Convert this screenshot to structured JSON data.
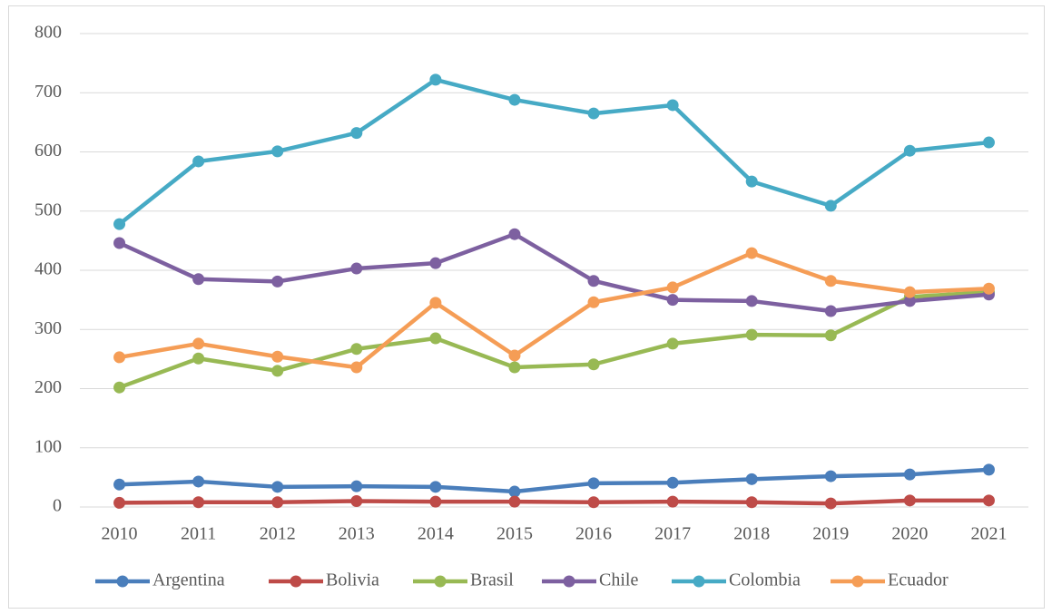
{
  "chart_data": {
    "type": "line",
    "categories": [
      "2010",
      "2011",
      "2012",
      "2013",
      "2014",
      "2015",
      "2016",
      "2017",
      "2018",
      "2019",
      "2020",
      "2021"
    ],
    "ylim": [
      0,
      800
    ],
    "yticks": [
      0,
      100,
      200,
      300,
      400,
      500,
      600,
      700,
      800
    ],
    "grid": true,
    "legend": "bottom",
    "series": [
      {
        "name": "Argentina",
        "color": "#4a7ebb",
        "values": [
          38,
          43,
          34,
          35,
          34,
          26,
          40,
          41,
          47,
          52,
          55,
          63
        ]
      },
      {
        "name": "Bolivia",
        "color": "#be4b48",
        "values": [
          7,
          8,
          8,
          10,
          9,
          9,
          8,
          9,
          8,
          6,
          11,
          11
        ]
      },
      {
        "name": "Brasil",
        "color": "#98b954",
        "values": [
          202,
          251,
          230,
          267,
          285,
          236,
          241,
          276,
          291,
          290,
          355,
          363
        ]
      },
      {
        "name": "Chile",
        "color": "#7d60a0",
        "values": [
          446,
          385,
          381,
          403,
          412,
          461,
          382,
          350,
          348,
          331,
          348,
          359
        ]
      },
      {
        "name": "Colombia",
        "color": "#46aac5",
        "values": [
          478,
          584,
          601,
          632,
          722,
          688,
          665,
          679,
          550,
          509,
          602,
          616
        ]
      },
      {
        "name": "Ecuador",
        "color": "#f59d56",
        "values": [
          253,
          276,
          254,
          236,
          345,
          256,
          346,
          371,
          429,
          382,
          363,
          369
        ]
      }
    ]
  }
}
